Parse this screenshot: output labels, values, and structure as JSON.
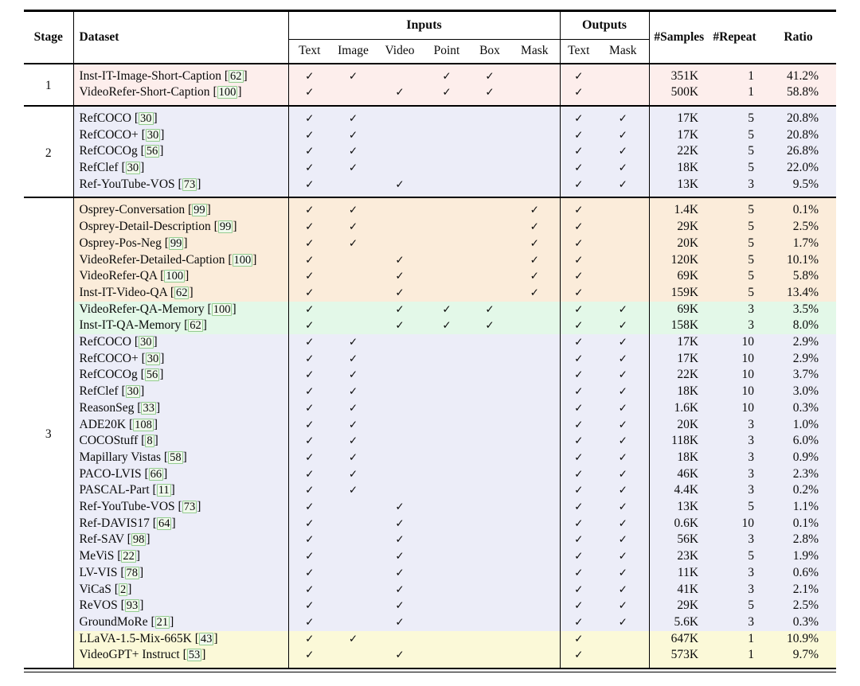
{
  "header": {
    "stage": "Stage",
    "dataset": "Dataset",
    "inputs_group": "Inputs",
    "outputs_group": "Outputs",
    "input_cols": [
      "Text",
      "Image",
      "Video",
      "Point",
      "Box",
      "Mask"
    ],
    "output_cols": [
      "Text",
      "Mask"
    ],
    "samples": "#Samples",
    "repeat": "#Repeat",
    "ratio": "Ratio"
  },
  "check_glyph": "✓",
  "colors": {
    "stage1_bg": "#fdeeec",
    "stage2_bg": "#ecedf8",
    "stage3_region_bg": "#fbecda",
    "stage3_memory_bg": "#e3f8e8",
    "stage3_seg_bg": "#ecedf8",
    "stage3_general_bg": "#fbf9d8",
    "citation_box_border": "#94cc90",
    "rule_color": "#000000"
  },
  "stages": [
    {
      "stage": "1",
      "rows": [
        {
          "dataset": "Inst-IT-Image-Short-Caption",
          "cite": "62",
          "bg": "pink",
          "inputs": [
            1,
            1,
            0,
            1,
            1,
            0
          ],
          "outputs": [
            1,
            0
          ],
          "samples": "351K",
          "repeat": "1",
          "ratio": "41.2%"
        },
        {
          "dataset": "VideoRefer-Short-Caption",
          "cite": "100",
          "bg": "pink",
          "inputs": [
            1,
            0,
            1,
            1,
            1,
            0
          ],
          "outputs": [
            1,
            0
          ],
          "samples": "500K",
          "repeat": "1",
          "ratio": "58.8%"
        }
      ]
    },
    {
      "stage": "2",
      "rows": [
        {
          "dataset": "RefCOCO",
          "cite": "30",
          "bg": "lavender",
          "inputs": [
            1,
            1,
            0,
            0,
            0,
            0
          ],
          "outputs": [
            1,
            1
          ],
          "samples": "17K",
          "repeat": "5",
          "ratio": "20.8%"
        },
        {
          "dataset": "RefCOCO+",
          "cite": "30",
          "bg": "lavender",
          "inputs": [
            1,
            1,
            0,
            0,
            0,
            0
          ],
          "outputs": [
            1,
            1
          ],
          "samples": "17K",
          "repeat": "5",
          "ratio": "20.8%"
        },
        {
          "dataset": "RefCOCOg",
          "cite": "56",
          "bg": "lavender",
          "inputs": [
            1,
            1,
            0,
            0,
            0,
            0
          ],
          "outputs": [
            1,
            1
          ],
          "samples": "22K",
          "repeat": "5",
          "ratio": "26.8%"
        },
        {
          "dataset": "RefClef",
          "cite": "30",
          "bg": "lavender",
          "inputs": [
            1,
            1,
            0,
            0,
            0,
            0
          ],
          "outputs": [
            1,
            1
          ],
          "samples": "18K",
          "repeat": "5",
          "ratio": "22.0%"
        },
        {
          "dataset": "Ref-YouTube-VOS",
          "cite": "73",
          "bg": "lavender",
          "inputs": [
            1,
            0,
            1,
            0,
            0,
            0
          ],
          "outputs": [
            1,
            1
          ],
          "samples": "13K",
          "repeat": "3",
          "ratio": "9.5%"
        }
      ]
    },
    {
      "stage": "3",
      "rows": [
        {
          "dataset": "Osprey-Conversation",
          "cite": "99",
          "bg": "peach",
          "inputs": [
            1,
            1,
            0,
            0,
            0,
            1
          ],
          "outputs": [
            1,
            0
          ],
          "samples": "1.4K",
          "repeat": "5",
          "ratio": "0.1%"
        },
        {
          "dataset": "Osprey-Detail-Description",
          "cite": "99",
          "bg": "peach",
          "inputs": [
            1,
            1,
            0,
            0,
            0,
            1
          ],
          "outputs": [
            1,
            0
          ],
          "samples": "29K",
          "repeat": "5",
          "ratio": "2.5%"
        },
        {
          "dataset": "Osprey-Pos-Neg",
          "cite": "99",
          "bg": "peach",
          "inputs": [
            1,
            1,
            0,
            0,
            0,
            1
          ],
          "outputs": [
            1,
            0
          ],
          "samples": "20K",
          "repeat": "5",
          "ratio": "1.7%"
        },
        {
          "dataset": "VideoRefer-Detailed-Caption",
          "cite": "100",
          "bg": "peach",
          "inputs": [
            1,
            0,
            1,
            0,
            0,
            1
          ],
          "outputs": [
            1,
            0
          ],
          "samples": "120K",
          "repeat": "5",
          "ratio": "10.1%"
        },
        {
          "dataset": "VideoRefer-QA",
          "cite": "100",
          "bg": "peach",
          "inputs": [
            1,
            0,
            1,
            0,
            0,
            1
          ],
          "outputs": [
            1,
            0
          ],
          "samples": "69K",
          "repeat": "5",
          "ratio": "5.8%"
        },
        {
          "dataset": "Inst-IT-Video-QA",
          "cite": "62",
          "bg": "peach",
          "inputs": [
            1,
            0,
            1,
            0,
            0,
            1
          ],
          "outputs": [
            1,
            0
          ],
          "samples": "159K",
          "repeat": "5",
          "ratio": "13.4%"
        },
        {
          "dataset": "VideoRefer-QA-Memory",
          "cite": "100",
          "bg": "green",
          "inputs": [
            1,
            0,
            1,
            1,
            1,
            0
          ],
          "outputs": [
            1,
            1
          ],
          "samples": "69K",
          "repeat": "3",
          "ratio": "3.5%"
        },
        {
          "dataset": "Inst-IT-QA-Memory",
          "cite": "62",
          "bg": "green",
          "inputs": [
            1,
            0,
            1,
            1,
            1,
            0
          ],
          "outputs": [
            1,
            1
          ],
          "samples": "158K",
          "repeat": "3",
          "ratio": "8.0%"
        },
        {
          "dataset": "RefCOCO",
          "cite": "30",
          "bg": "lavender",
          "inputs": [
            1,
            1,
            0,
            0,
            0,
            0
          ],
          "outputs": [
            1,
            1
          ],
          "samples": "17K",
          "repeat": "10",
          "ratio": "2.9%"
        },
        {
          "dataset": "RefCOCO+",
          "cite": "30",
          "bg": "lavender",
          "inputs": [
            1,
            1,
            0,
            0,
            0,
            0
          ],
          "outputs": [
            1,
            1
          ],
          "samples": "17K",
          "repeat": "10",
          "ratio": "2.9%"
        },
        {
          "dataset": "RefCOCOg",
          "cite": "56",
          "bg": "lavender",
          "inputs": [
            1,
            1,
            0,
            0,
            0,
            0
          ],
          "outputs": [
            1,
            1
          ],
          "samples": "22K",
          "repeat": "10",
          "ratio": "3.7%"
        },
        {
          "dataset": "RefClef",
          "cite": "30",
          "bg": "lavender",
          "inputs": [
            1,
            1,
            0,
            0,
            0,
            0
          ],
          "outputs": [
            1,
            1
          ],
          "samples": "18K",
          "repeat": "10",
          "ratio": "3.0%"
        },
        {
          "dataset": "ReasonSeg",
          "cite": "33",
          "bg": "lavender",
          "inputs": [
            1,
            1,
            0,
            0,
            0,
            0
          ],
          "outputs": [
            1,
            1
          ],
          "samples": "1.6K",
          "repeat": "10",
          "ratio": "0.3%"
        },
        {
          "dataset": "ADE20K",
          "cite": "108",
          "bg": "lavender",
          "inputs": [
            1,
            1,
            0,
            0,
            0,
            0
          ],
          "outputs": [
            1,
            1
          ],
          "samples": "20K",
          "repeat": "3",
          "ratio": "1.0%"
        },
        {
          "dataset": "COCOStuff",
          "cite": "8",
          "bg": "lavender",
          "inputs": [
            1,
            1,
            0,
            0,
            0,
            0
          ],
          "outputs": [
            1,
            1
          ],
          "samples": "118K",
          "repeat": "3",
          "ratio": "6.0%"
        },
        {
          "dataset": "Mapillary Vistas",
          "cite": "58",
          "bg": "lavender",
          "inputs": [
            1,
            1,
            0,
            0,
            0,
            0
          ],
          "outputs": [
            1,
            1
          ],
          "samples": "18K",
          "repeat": "3",
          "ratio": "0.9%"
        },
        {
          "dataset": "PACO-LVIS",
          "cite": "66",
          "bg": "lavender",
          "inputs": [
            1,
            1,
            0,
            0,
            0,
            0
          ],
          "outputs": [
            1,
            1
          ],
          "samples": "46K",
          "repeat": "3",
          "ratio": "2.3%"
        },
        {
          "dataset": "PASCAL-Part",
          "cite": "11",
          "bg": "lavender",
          "inputs": [
            1,
            1,
            0,
            0,
            0,
            0
          ],
          "outputs": [
            1,
            1
          ],
          "samples": "4.4K",
          "repeat": "3",
          "ratio": "0.2%"
        },
        {
          "dataset": "Ref-YouTube-VOS",
          "cite": "73",
          "bg": "lavender",
          "inputs": [
            1,
            0,
            1,
            0,
            0,
            0
          ],
          "outputs": [
            1,
            1
          ],
          "samples": "13K",
          "repeat": "5",
          "ratio": "1.1%"
        },
        {
          "dataset": "Ref-DAVIS17",
          "cite": "64",
          "bg": "lavender",
          "inputs": [
            1,
            0,
            1,
            0,
            0,
            0
          ],
          "outputs": [
            1,
            1
          ],
          "samples": "0.6K",
          "repeat": "10",
          "ratio": "0.1%"
        },
        {
          "dataset": "Ref-SAV",
          "cite": "98",
          "bg": "lavender",
          "inputs": [
            1,
            0,
            1,
            0,
            0,
            0
          ],
          "outputs": [
            1,
            1
          ],
          "samples": "56K",
          "repeat": "3",
          "ratio": "2.8%"
        },
        {
          "dataset": "MeViS",
          "cite": "22",
          "bg": "lavender",
          "inputs": [
            1,
            0,
            1,
            0,
            0,
            0
          ],
          "outputs": [
            1,
            1
          ],
          "samples": "23K",
          "repeat": "5",
          "ratio": "1.9%"
        },
        {
          "dataset": "LV-VIS",
          "cite": "78",
          "bg": "lavender",
          "inputs": [
            1,
            0,
            1,
            0,
            0,
            0
          ],
          "outputs": [
            1,
            1
          ],
          "samples": "11K",
          "repeat": "3",
          "ratio": "0.6%"
        },
        {
          "dataset": "ViCaS",
          "cite": "2",
          "bg": "lavender",
          "inputs": [
            1,
            0,
            1,
            0,
            0,
            0
          ],
          "outputs": [
            1,
            1
          ],
          "samples": "41K",
          "repeat": "3",
          "ratio": "2.1%"
        },
        {
          "dataset": "ReVOS",
          "cite": "93",
          "bg": "lavender",
          "inputs": [
            1,
            0,
            1,
            0,
            0,
            0
          ],
          "outputs": [
            1,
            1
          ],
          "samples": "29K",
          "repeat": "5",
          "ratio": "2.5%"
        },
        {
          "dataset": "GroundMoRe",
          "cite": "21",
          "bg": "lavender",
          "inputs": [
            1,
            0,
            1,
            0,
            0,
            0
          ],
          "outputs": [
            1,
            1
          ],
          "samples": "5.6K",
          "repeat": "3",
          "ratio": "0.3%"
        },
        {
          "dataset": "LLaVA-1.5-Mix-665K",
          "cite": "43",
          "bg": "yellow",
          "inputs": [
            1,
            1,
            0,
            0,
            0,
            0
          ],
          "outputs": [
            1,
            0
          ],
          "samples": "647K",
          "repeat": "1",
          "ratio": "10.9%"
        },
        {
          "dataset": "VideoGPT+ Instruct",
          "cite": "53",
          "bg": "yellow",
          "inputs": [
            1,
            0,
            1,
            0,
            0,
            0
          ],
          "outputs": [
            1,
            0
          ],
          "samples": "573K",
          "repeat": "1",
          "ratio": "9.7%"
        }
      ]
    }
  ]
}
